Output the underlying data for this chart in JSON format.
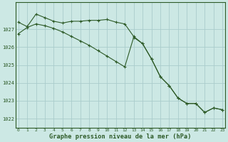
{
  "title": "Graphe pression niveau de la mer (hPa)",
  "bg_color": "#cce8e4",
  "grid_color": "#aacccc",
  "line_color": "#2d5a27",
  "x_ticks": [
    0,
    1,
    2,
    3,
    4,
    5,
    6,
    7,
    8,
    9,
    10,
    11,
    12,
    13,
    14,
    15,
    16,
    17,
    18,
    19,
    20,
    21,
    22,
    23
  ],
  "ylim": [
    1021.5,
    1028.5
  ],
  "yticks": [
    1022,
    1023,
    1024,
    1025,
    1026,
    1027
  ],
  "series1_y": [
    1027.4,
    1027.15,
    1027.85,
    1027.65,
    1027.45,
    1027.35,
    1027.45,
    1027.45,
    1027.5,
    1027.5,
    1027.55,
    1027.4,
    1027.3,
    1026.6,
    1026.2,
    1025.35,
    1024.35,
    1023.85,
    1023.15,
    1022.85,
    1022.85,
    1022.35,
    1022.6,
    1022.5
  ],
  "series2_y": [
    1026.75,
    1027.1,
    1027.3,
    1027.2,
    1027.05,
    1026.85,
    1026.6,
    1026.35,
    1026.1,
    1025.8,
    1025.5,
    1025.2,
    1024.9,
    1026.55,
    1026.2,
    1025.35,
    1024.35,
    1023.85,
    1023.15,
    1022.85,
    1022.85,
    1022.35,
    1022.6,
    1022.5
  ]
}
